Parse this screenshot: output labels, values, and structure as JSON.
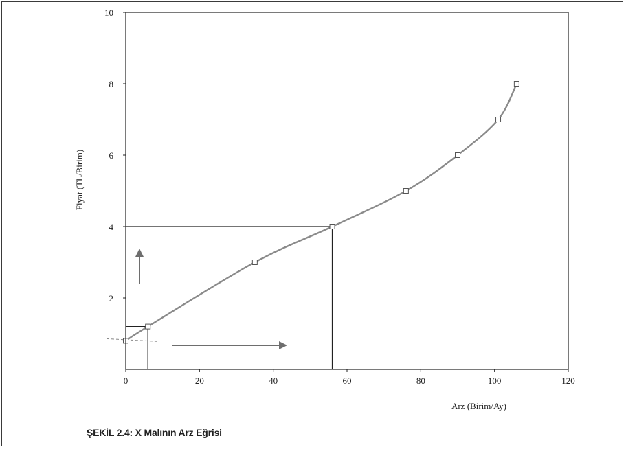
{
  "chart_data": {
    "type": "line",
    "title": "",
    "caption": "ŞEKİL 2.4: X Malının Arz Eğrisi",
    "xlabel": "Arz (Birim/Ay)",
    "ylabel": "Fiyat (TL/Birim)",
    "xlim": [
      0,
      120
    ],
    "ylim": [
      0,
      10
    ],
    "x_ticks": [
      0,
      20,
      40,
      60,
      80,
      100,
      120
    ],
    "y_ticks": [
      2,
      4,
      6,
      8,
      10
    ],
    "grid": false,
    "series": [
      {
        "name": "",
        "color": "#8a8a8a",
        "marker": "square",
        "x": [
          0,
          6,
          35,
          56,
          76,
          90,
          101,
          106
        ],
        "y": [
          0.8,
          1.2,
          3.0,
          4.0,
          5.0,
          6.0,
          7.0,
          8.0
        ]
      }
    ],
    "annotations": {
      "guide_points": [
        {
          "x": 6,
          "y": 1.2
        },
        {
          "x": 56,
          "y": 4.0
        }
      ],
      "arrows": [
        "up",
        "right"
      ]
    }
  }
}
